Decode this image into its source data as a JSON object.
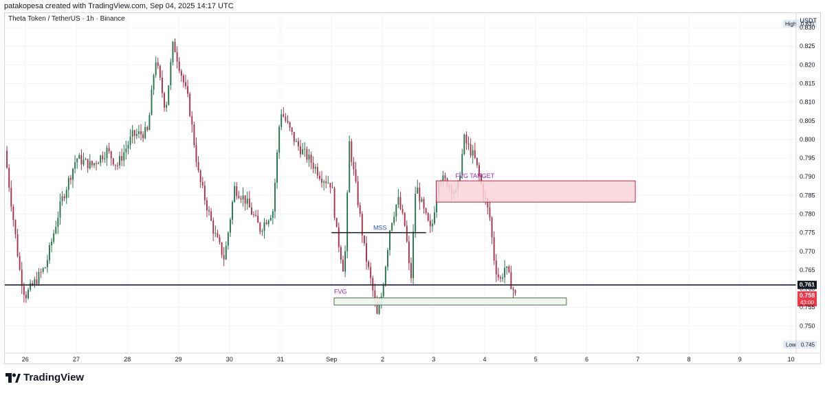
{
  "header": {
    "created_by": "patakopesa created with TradingView.com, Sep 04, 2025 14:17 UTC"
  },
  "symbol_line": "Theta Token / TetherUS · 1h · Binance",
  "currency": "USDT",
  "brand": {
    "name": "TradingView"
  },
  "colors": {
    "up": "#26754a",
    "down": "#a8324a",
    "fvg_target_fill": "#fcd5da",
    "fvg_target_stroke": "#b22848",
    "fvg_fill": "#eef5ec",
    "fvg_stroke": "#4b6e4c",
    "level": "#131722",
    "price_badge": "#f23645"
  },
  "chart_data": {
    "type": "candlestick",
    "title": "Theta Token / TetherUS · 1h · Binance",
    "interval": "1h",
    "exchange": "Binance",
    "x_tick_labels": [
      "26",
      "27",
      "28",
      "29",
      "30",
      "31",
      "Sep",
      "2",
      "3",
      "4",
      "5",
      "6",
      "7",
      "8",
      "9",
      "10"
    ],
    "y_ticks": [
      0.75,
      0.755,
      0.76,
      0.765,
      0.77,
      0.775,
      0.78,
      0.785,
      0.79,
      0.795,
      0.8,
      0.805,
      0.81,
      0.815,
      0.82,
      0.825,
      0.83
    ],
    "y_tick_labels": [
      "0.750",
      "0.755",
      "0.760",
      "0.765",
      "0.770",
      "0.775",
      "0.780",
      "0.785",
      "0.790",
      "0.795",
      "0.800",
      "0.805",
      "0.810",
      "0.815",
      "0.820",
      "0.825",
      "0.830"
    ],
    "ylim": [
      0.7427,
      0.8337
    ],
    "xlim_days": [
      25.6,
      41.1
    ],
    "grid": true,
    "close_path": [
      [
        25.6,
        0.797
      ],
      [
        25.9,
        0.764
      ],
      [
        26.0,
        0.758
      ],
      [
        26.4,
        0.766
      ],
      [
        26.7,
        0.783
      ],
      [
        27.0,
        0.795
      ],
      [
        27.3,
        0.793
      ],
      [
        27.6,
        0.797
      ],
      [
        27.8,
        0.793
      ],
      [
        28.1,
        0.801
      ],
      [
        28.4,
        0.802
      ],
      [
        28.55,
        0.822
      ],
      [
        28.75,
        0.808
      ],
      [
        28.9,
        0.826
      ],
      [
        29.2,
        0.81
      ],
      [
        29.4,
        0.79
      ],
      [
        29.7,
        0.775
      ],
      [
        29.9,
        0.768
      ],
      [
        30.1,
        0.787
      ],
      [
        30.3,
        0.784
      ],
      [
        30.6,
        0.776
      ],
      [
        30.85,
        0.781
      ],
      [
        31.0,
        0.808
      ],
      [
        31.3,
        0.799
      ],
      [
        31.6,
        0.794
      ],
      [
        31.8,
        0.79
      ],
      [
        32.0,
        0.788
      ],
      [
        32.1,
        0.775
      ],
      [
        32.25,
        0.764
      ],
      [
        32.35,
        0.799
      ],
      [
        32.5,
        0.785
      ],
      [
        32.65,
        0.77
      ],
      [
        32.8,
        0.76
      ],
      [
        32.9,
        0.752
      ],
      [
        33.0,
        0.76
      ],
      [
        33.15,
        0.777
      ],
      [
        33.3,
        0.784
      ],
      [
        33.45,
        0.776
      ],
      [
        33.55,
        0.761
      ],
      [
        33.65,
        0.788
      ],
      [
        33.8,
        0.781
      ],
      [
        33.95,
        0.775
      ],
      [
        34.1,
        0.79
      ],
      [
        34.3,
        0.788
      ],
      [
        34.45,
        0.785
      ],
      [
        34.6,
        0.8
      ],
      [
        34.8,
        0.795
      ],
      [
        34.95,
        0.787
      ],
      [
        35.1,
        0.779
      ],
      [
        35.2,
        0.766
      ],
      [
        35.3,
        0.762
      ],
      [
        35.4,
        0.766
      ],
      [
        35.55,
        0.76
      ],
      [
        35.6,
        0.758
      ]
    ],
    "current_price": 0.758,
    "current_price_label": "0.758",
    "countdown_label": "43:00",
    "last_price_hint": 0.761,
    "last_price_label": "0.761",
    "high_label": "High",
    "high_value": 0.831,
    "high_value_label": "0.831",
    "low_label": "Low",
    "low_value": 0.745,
    "low_value_label": "0.745",
    "horizontal_level": 0.761,
    "mss": {
      "label": "MSS",
      "price": 0.775,
      "x_start": 32.0,
      "x_end": 33.85
    },
    "fvg_target": {
      "label": "FVG TARGET",
      "x_start": 34.05,
      "x_end": 37.95,
      "y_low": 0.7832,
      "y_high": 0.7889
    },
    "fvg": {
      "label": "FVG",
      "x_start": 32.05,
      "x_end": 36.6,
      "y_low": 0.7556,
      "y_high": 0.7575
    }
  }
}
